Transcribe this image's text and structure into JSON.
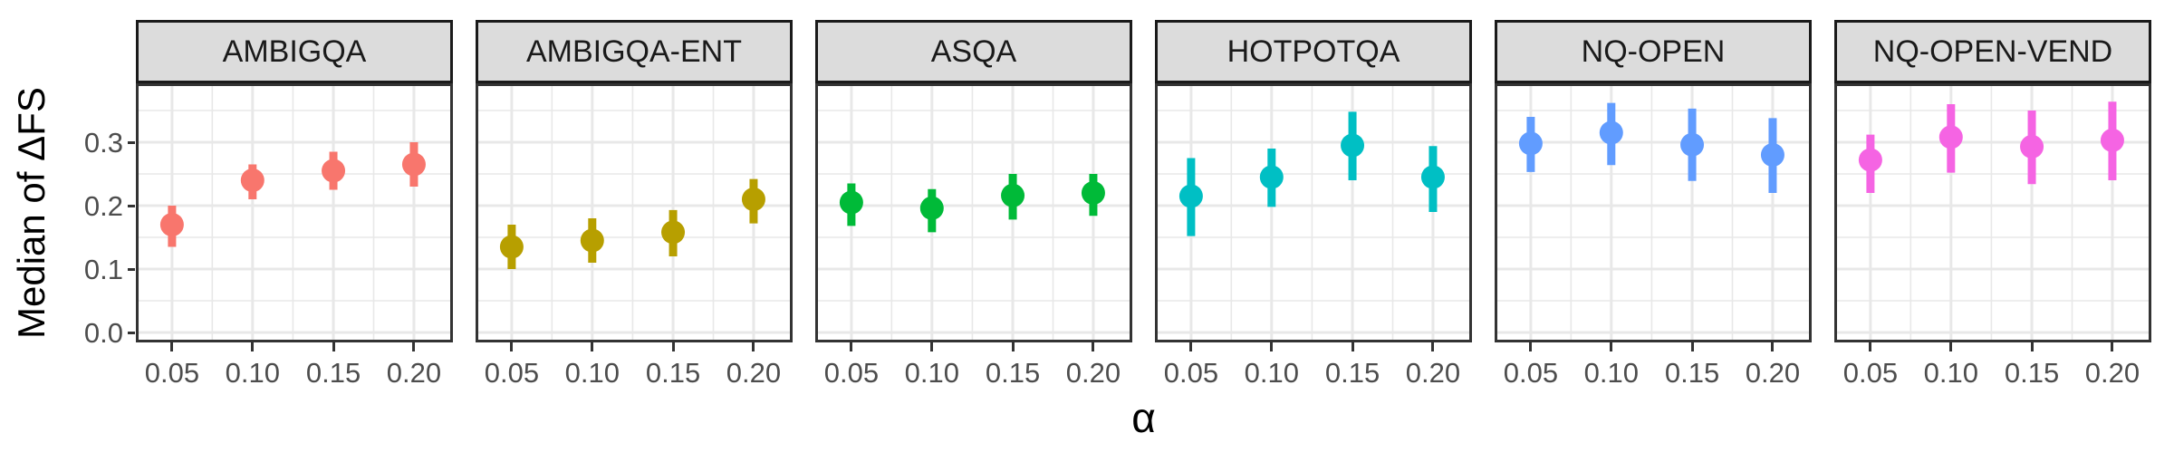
{
  "chart_data": {
    "type": "pointrange-scatter",
    "title": "",
    "xlabel": "α",
    "ylabel": "Median of ΔFS",
    "x": [
      0.05,
      0.1,
      0.15,
      0.2
    ],
    "x_tick_labels": [
      "0.05",
      "0.10",
      "0.15",
      "0.20"
    ],
    "y_tick_values": [
      0.0,
      0.1,
      0.2,
      0.3
    ],
    "y_tick_labels": [
      "0.0",
      "0.1",
      "0.2",
      "0.3"
    ],
    "ylim": [
      -0.016,
      0.393
    ],
    "xlim": [
      0.028,
      0.2225
    ],
    "grid": true,
    "minor_grid": true,
    "legend": "none",
    "facet_layout": "single-row-6-panels",
    "panel_background": "#FFFFFF",
    "gridline_color": "#E8E8E8",
    "strip_background": "#DCDCDC",
    "panel_border_color": "#333333",
    "axis_text_color": "#4D4D4D",
    "facets": [
      {
        "label": "AMBIGQA",
        "color": "#F8766D",
        "y": [
          0.17,
          0.24,
          0.255,
          0.265
        ],
        "ymin": [
          0.135,
          0.21,
          0.225,
          0.23
        ],
        "ymax": [
          0.2,
          0.265,
          0.285,
          0.3
        ]
      },
      {
        "label": "AMBIGQA-ENT",
        "color": "#B79F00",
        "y": [
          0.135,
          0.145,
          0.158,
          0.21
        ],
        "ymin": [
          0.1,
          0.11,
          0.12,
          0.172
        ],
        "ymax": [
          0.17,
          0.18,
          0.193,
          0.242
        ]
      },
      {
        "label": "ASQA",
        "color": "#00BA38",
        "y": [
          0.205,
          0.196,
          0.216,
          0.22
        ],
        "ymin": [
          0.168,
          0.158,
          0.178,
          0.184
        ],
        "ymax": [
          0.235,
          0.226,
          0.25,
          0.25
        ]
      },
      {
        "label": "HOTPOTQA",
        "color": "#00BFC4",
        "y": [
          0.215,
          0.245,
          0.295,
          0.245
        ],
        "ymin": [
          0.152,
          0.198,
          0.24,
          0.19
        ],
        "ymax": [
          0.275,
          0.29,
          0.348,
          0.294
        ]
      },
      {
        "label": "NQ-OPEN",
        "color": "#619CFF",
        "y": [
          0.298,
          0.315,
          0.296,
          0.28
        ],
        "ymin": [
          0.253,
          0.264,
          0.239,
          0.22
        ],
        "ymax": [
          0.34,
          0.362,
          0.353,
          0.338
        ]
      },
      {
        "label": "NQ-OPEN-VEND",
        "color": "#F564E3",
        "y": [
          0.272,
          0.308,
          0.293,
          0.303
        ],
        "ymin": [
          0.22,
          0.252,
          0.234,
          0.24
        ],
        "ymax": [
          0.312,
          0.36,
          0.35,
          0.364
        ]
      }
    ]
  }
}
